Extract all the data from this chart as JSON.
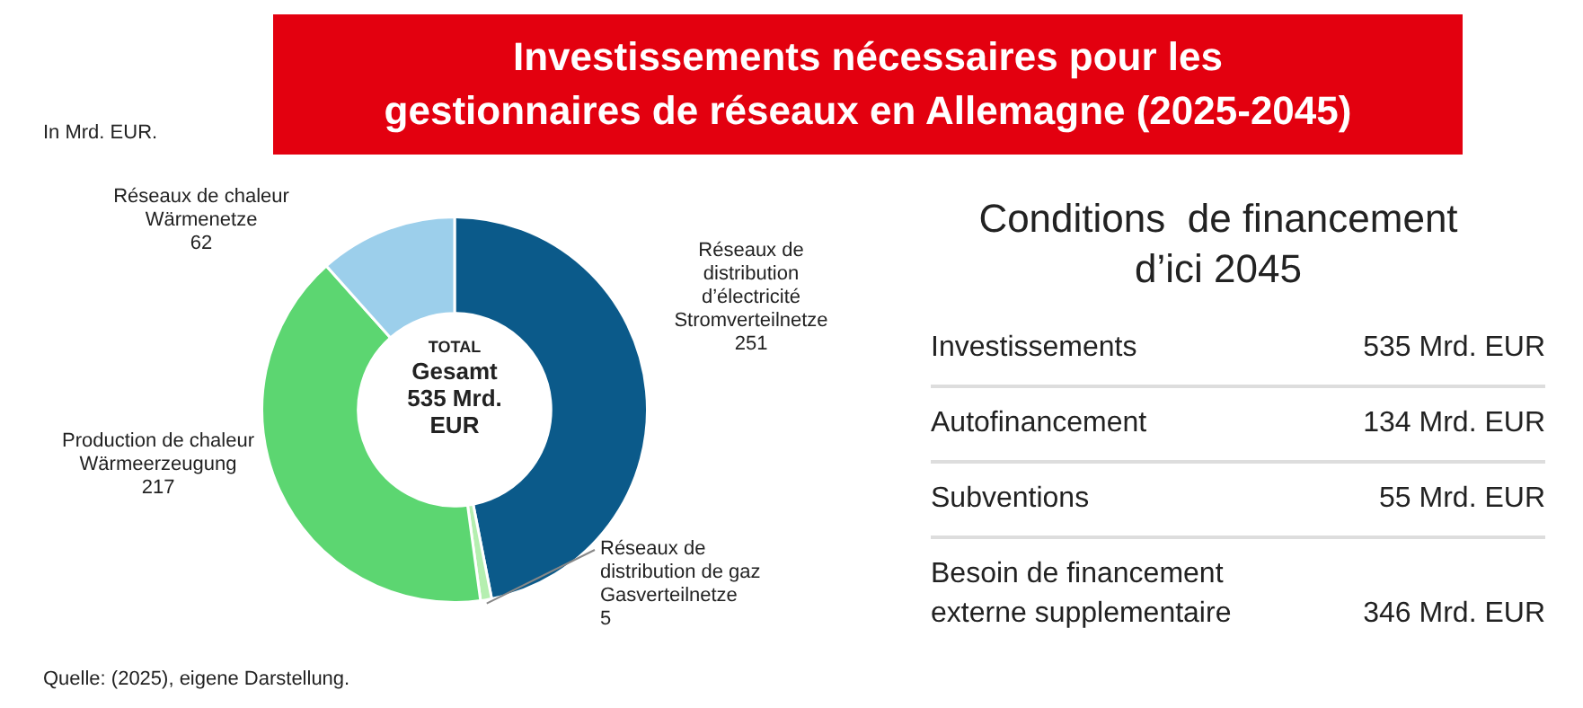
{
  "chart_data": [
    {
      "type": "donut",
      "title": "Investissements nécessaires pour les\ngestionnaires de réseaux en Allemagne (2025-2045)",
      "subtitle": "In Mrd. EUR.",
      "categories": [
        "Réseaux de\ndistribution\nd’électricité\nStromverteilnetze",
        "Réseaux de\ndistribution de gaz\nGasverteilnetze",
        "Production de chaleur\nWärmeerzeugung",
        "Réseaux de chaleur\nWärmenetze"
      ],
      "values": [
        251,
        5,
        217,
        62
      ],
      "colors": [
        "#0b5a8a",
        "#b5efb0",
        "#5cd671",
        "#9ccfeb"
      ],
      "data_labels": true,
      "legend": false,
      "annotations": [
        "TOTAL",
        "Gesamt\n535 Mrd.\nEUR",
        "Quelle: (2025), eigene Darstellung."
      ]
    },
    {
      "type": "other",
      "title": "Conditions  de financement\nd’ici 2045",
      "annotations": [
        "Investissements",
        "535 Mrd. EUR",
        "Autofinancement",
        "134 Mrd. EUR",
        "Subventions",
        "55 Mrd. EUR",
        "Besoin de financement externe supplementaire",
        "346 Mrd. EUR"
      ]
    }
  ]
}
